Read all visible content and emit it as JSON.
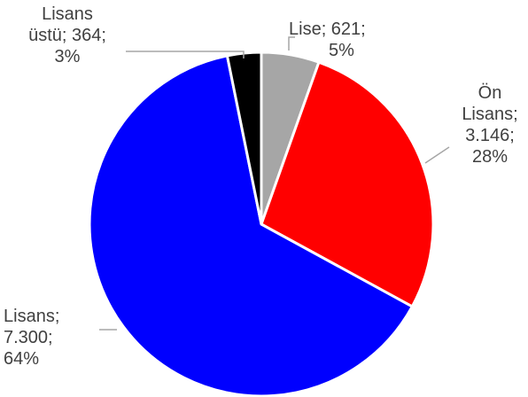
{
  "chart_data": {
    "type": "pie",
    "start_angle_deg": 0,
    "direction": "clockwise",
    "slices": [
      {
        "category": "Lise",
        "value": 621,
        "value_label": "621",
        "percent": "5%",
        "color": "#a6a6a6"
      },
      {
        "category": "Ön Lisans",
        "value": 3146,
        "value_label": "3.146",
        "percent": "28%",
        "color": "#ff0000"
      },
      {
        "category": "Lisans",
        "value": 7300,
        "value_label": "7.300",
        "percent": "64%",
        "color": "#0000ff"
      },
      {
        "category": "Lisans üstü",
        "value": 364,
        "value_label": "364",
        "percent": "3%",
        "color": "#000000"
      }
    ],
    "labels": {
      "lise": [
        "Lise; 621;",
        "5%"
      ],
      "on_lisans": [
        "Ön",
        "Lisans;",
        "3.146;",
        "28%"
      ],
      "lisans": [
        "Lisans;",
        "7.300;",
        "64%"
      ],
      "lisans_ustu": [
        "Lisans",
        "üstü; 364;",
        "3%"
      ]
    },
    "legend": "none"
  }
}
